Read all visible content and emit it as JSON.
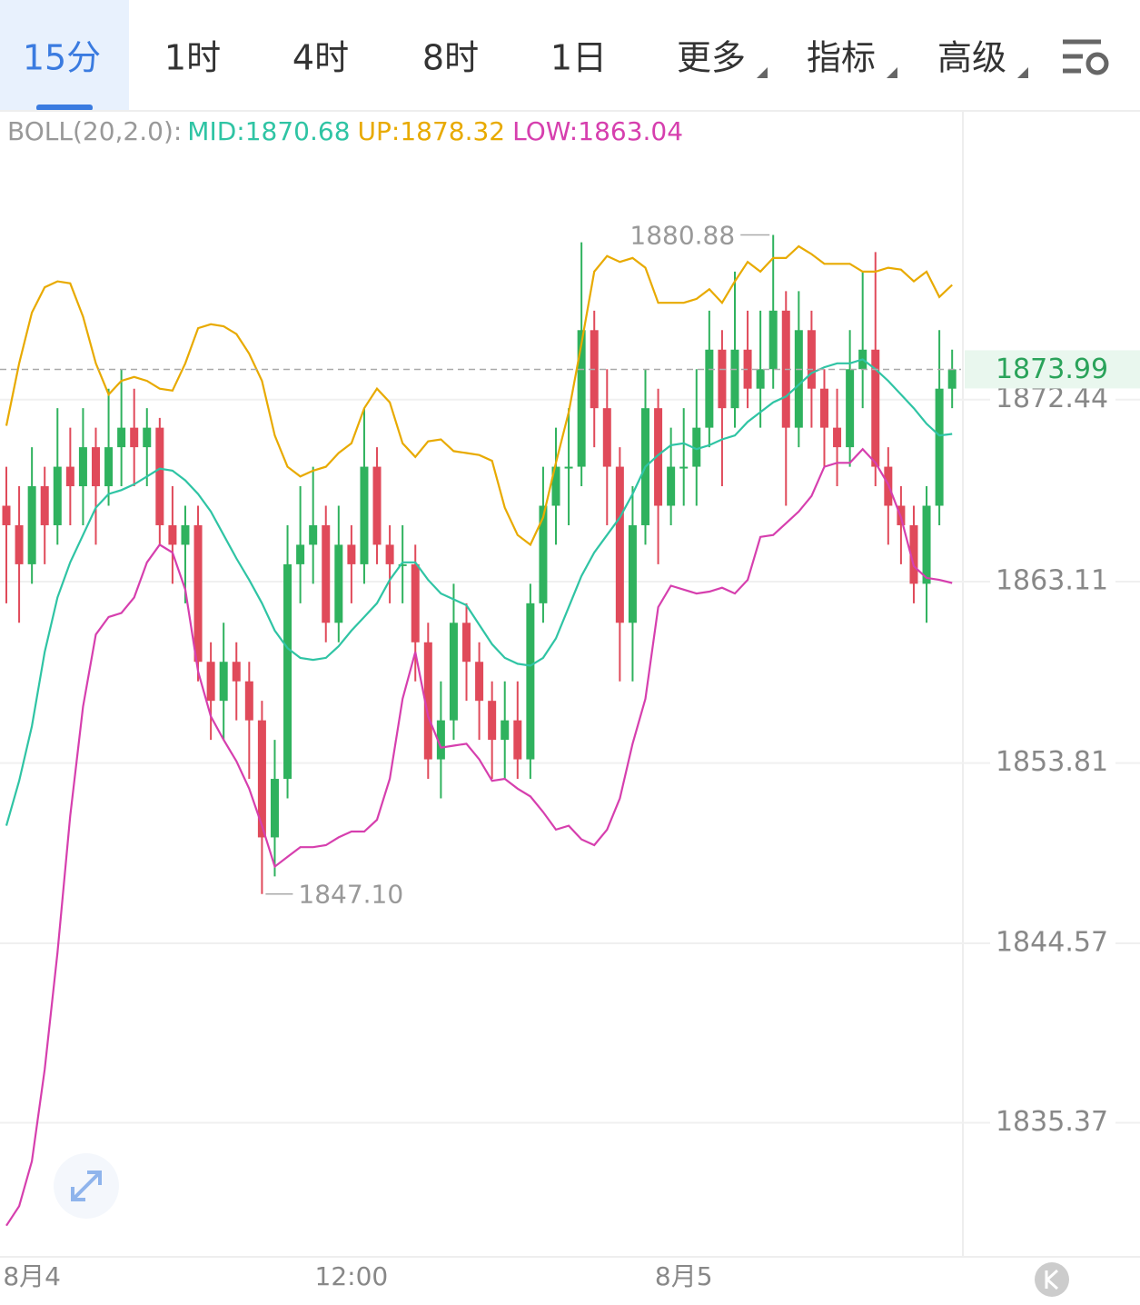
{
  "tabs": {
    "items": [
      "15分",
      "1时",
      "4时",
      "8时",
      "1日",
      "更多",
      "指标",
      "高级"
    ],
    "active": 0,
    "dropdown_from": 5
  },
  "chart_data": {
    "type": "candlestick",
    "indicator": "BOLL(20,2.0):",
    "categories": [
      null,
      null,
      "8月4",
      null,
      null,
      null,
      null,
      null,
      null,
      null,
      null,
      null,
      null,
      null,
      null,
      null,
      null,
      null,
      null,
      null,
      null,
      null,
      null,
      null,
      null,
      null,
      null,
      "12:00",
      null,
      null,
      null,
      null,
      null,
      null,
      null,
      null,
      null,
      null,
      null,
      null,
      null,
      null,
      null,
      null,
      null,
      null,
      null,
      null,
      null,
      null,
      null,
      null,
      null,
      "8月5",
      null,
      null,
      null,
      null,
      null,
      null,
      null,
      null,
      null,
      null,
      null,
      null,
      null,
      null,
      null,
      null,
      null,
      null,
      null,
      null,
      null
    ],
    "open": [
      1867,
      1866,
      1864,
      1868,
      1866,
      1869,
      1868,
      1870,
      1868,
      1870,
      1871,
      1870,
      1871,
      1866,
      1865,
      1866,
      1859,
      1857,
      1859,
      1858,
      1856,
      1850,
      1853,
      1864,
      1865,
      1866,
      1861,
      1865,
      1864,
      1869,
      1865,
      1864,
      1864,
      1860,
      1854,
      1856,
      1861,
      1859,
      1857,
      1855,
      1856,
      1854,
      1862,
      1867,
      1869,
      1869,
      1876,
      1872,
      1869,
      1861,
      1866,
      1872,
      1867,
      1869,
      1869,
      1871,
      1875,
      1872,
      1875,
      1873,
      1874,
      1877,
      1871,
      1876,
      1873,
      1871,
      1870,
      1874,
      1875,
      1869,
      1867,
      1866,
      1863,
      1867,
      1873
    ],
    "high": [
      1869,
      1868,
      1870,
      1869,
      1872,
      1871,
      1872,
      1871,
      1873,
      1874,
      1873,
      1872,
      1871.5,
      1868,
      1867,
      1867,
      1860,
      1861,
      1860,
      1859,
      1857,
      1855,
      1866,
      1868,
      1869,
      1867,
      1867,
      1866,
      1872,
      1870,
      1866,
      1866,
      1865,
      1861,
      1858,
      1863,
      1862,
      1860,
      1858,
      1858,
      1858,
      1863,
      1869,
      1871,
      1872,
      1880.5,
      1877,
      1874,
      1870,
      1868,
      1874,
      1873,
      1871,
      1872,
      1874,
      1877,
      1876,
      1879,
      1877,
      1877,
      1880.88,
      1878,
      1878,
      1877,
      1874,
      1873,
      1876,
      1879,
      1880,
      1870,
      1868,
      1867,
      1868,
      1876,
      1875
    ],
    "low": [
      1862,
      1861,
      1863,
      1864,
      1865,
      1866,
      1866,
      1865,
      1867,
      1868,
      1868,
      1868,
      1865,
      1863,
      1862,
      1858,
      1855,
      1855,
      1856,
      1853,
      1847.1,
      1848,
      1852,
      1862,
      1863,
      1860,
      1860,
      1862,
      1863,
      1864,
      1862,
      1862,
      1858,
      1853,
      1852,
      1855,
      1857,
      1855,
      1853,
      1853,
      1853,
      1853,
      1861,
      1865,
      1866,
      1868,
      1870,
      1866,
      1858,
      1858,
      1865,
      1864,
      1866,
      1867,
      1867,
      1870,
      1868,
      1871,
      1872,
      1871,
      1873,
      1867,
      1870,
      1871,
      1869,
      1868,
      1869,
      1872,
      1868,
      1865,
      1864,
      1862,
      1861,
      1866,
      1872
    ],
    "close": [
      1866,
      1864,
      1868,
      1866,
      1869,
      1868,
      1870,
      1868,
      1870,
      1871,
      1870,
      1871,
      1866,
      1865,
      1866,
      1859,
      1857,
      1859,
      1858,
      1856,
      1850,
      1853,
      1864,
      1865,
      1866,
      1861,
      1865,
      1864,
      1869,
      1865,
      1864,
      1864,
      1860,
      1854,
      1856,
      1861,
      1859,
      1857,
      1855,
      1856,
      1854,
      1862,
      1867,
      1869,
      1869,
      1876,
      1872,
      1869,
      1861,
      1866,
      1872,
      1867,
      1869,
      1869,
      1871,
      1875,
      1872,
      1875,
      1873,
      1874,
      1877,
      1871,
      1876,
      1873,
      1871,
      1870,
      1874,
      1875,
      1869,
      1867,
      1866,
      1863,
      1867,
      1873,
      1873.99
    ],
    "max_label": "1880.88",
    "min_label": "1847.10",
    "up_color": "#2fb25e",
    "down_color": "#e04a5a",
    "series": [
      {
        "name": "MID:",
        "color": "#2fc4a4",
        "values": [
          1850.6,
          1852.9,
          1855.7,
          1859.5,
          1862.3,
          1864.1,
          1865.5,
          1866.9,
          1867.6,
          1867.8,
          1868.1,
          1868.5,
          1868.9,
          1868.8,
          1868.3,
          1867.6,
          1866.7,
          1865.5,
          1864.3,
          1863.2,
          1862.0,
          1860.6,
          1859.7,
          1859.2,
          1859.1,
          1859.2,
          1859.8,
          1860.6,
          1861.3,
          1862.0,
          1863.2,
          1864.1,
          1864.1,
          1863.2,
          1862.5,
          1862.2,
          1861.9,
          1860.9,
          1859.9,
          1859.2,
          1858.9,
          1858.8,
          1859.2,
          1860.2,
          1861.8,
          1863.4,
          1864.6,
          1865.5,
          1866.4,
          1867.6,
          1869.0,
          1869.6,
          1870.1,
          1870.2,
          1869.9,
          1870.1,
          1870.4,
          1870.6,
          1871.3,
          1871.8,
          1872.3,
          1872.6,
          1873.2,
          1873.8,
          1874.1,
          1874.3,
          1874.3,
          1874.5,
          1874.0,
          1873.4,
          1872.7,
          1872.0,
          1871.2,
          1870.6,
          1870.68
        ]
      },
      {
        "name": "UP:",
        "color": "#e8aa00",
        "values": [
          1871.1,
          1874.3,
          1876.9,
          1878.2,
          1878.5,
          1878.4,
          1876.7,
          1874.3,
          1872.7,
          1873.4,
          1873.6,
          1873.4,
          1873.0,
          1872.9,
          1874.3,
          1876.1,
          1876.3,
          1876.2,
          1875.8,
          1874.8,
          1873.4,
          1870.6,
          1869.0,
          1868.5,
          1868.8,
          1869.0,
          1869.7,
          1870.2,
          1872.0,
          1873.0,
          1872.3,
          1870.2,
          1869.5,
          1870.3,
          1870.4,
          1869.8,
          1869.7,
          1869.6,
          1869.3,
          1866.9,
          1865.5,
          1865.0,
          1866.4,
          1869.2,
          1871.8,
          1875.3,
          1879.0,
          1879.8,
          1879.5,
          1879.7,
          1879.2,
          1877.4,
          1877.4,
          1877.4,
          1877.6,
          1878.1,
          1877.4,
          1878.5,
          1879.5,
          1879.0,
          1879.7,
          1879.7,
          1880.3,
          1879.9,
          1879.4,
          1879.4,
          1879.4,
          1879.0,
          1879.0,
          1879.2,
          1879.1,
          1878.5,
          1879.0,
          1877.7,
          1878.32
        ]
      },
      {
        "name": "LOW:",
        "color": "#d63fae",
        "values": [
          1830.1,
          1831.1,
          1833.4,
          1838.1,
          1844.1,
          1851.1,
          1856.7,
          1860.4,
          1861.3,
          1861.5,
          1862.3,
          1864.1,
          1865.0,
          1864.6,
          1862.7,
          1858.5,
          1856.2,
          1855.0,
          1853.9,
          1852.5,
          1850.6,
          1848.5,
          1849.0,
          1849.5,
          1849.5,
          1849.6,
          1850.0,
          1850.3,
          1850.3,
          1850.9,
          1853.0,
          1857.1,
          1859.5,
          1856.2,
          1854.6,
          1854.7,
          1854.8,
          1854.0,
          1852.9,
          1853.0,
          1852.5,
          1852.1,
          1851.3,
          1850.4,
          1850.6,
          1849.9,
          1849.6,
          1850.4,
          1852.0,
          1854.8,
          1857.1,
          1861.8,
          1862.9,
          1862.7,
          1862.5,
          1862.6,
          1862.8,
          1862.5,
          1863.2,
          1865.4,
          1865.5,
          1866.1,
          1866.7,
          1867.5,
          1869.0,
          1869.2,
          1869.2,
          1869.9,
          1869.2,
          1868.1,
          1866.4,
          1863.9,
          1863.3,
          1863.2,
          1863.04
        ]
      }
    ],
    "ylim": [
      1828.5,
      1887.1
    ],
    "yticks": [
      1835.37,
      1844.57,
      1853.81,
      1863.11,
      1872.44
    ],
    "grid": true
  }
}
